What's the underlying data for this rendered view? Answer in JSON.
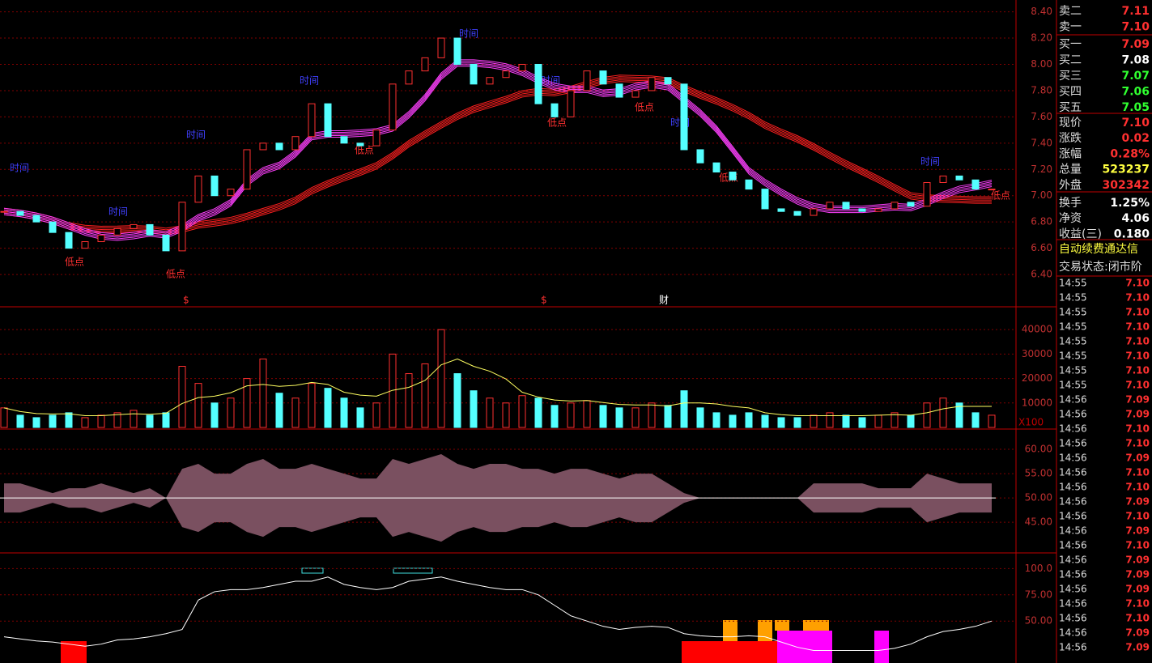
{
  "chart": {
    "type": "candlestick",
    "closes": [
      6.88,
      6.85,
      6.8,
      6.72,
      6.6,
      6.65,
      6.7,
      6.75,
      6.78,
      6.7,
      6.58,
      6.95,
      7.15,
      7.0,
      7.05,
      7.35,
      7.4,
      7.35,
      7.45,
      7.7,
      7.45,
      7.4,
      7.38,
      7.5,
      7.85,
      7.95,
      8.05,
      8.2,
      8.0,
      7.85,
      7.9,
      7.95,
      8.0,
      7.7,
      7.6,
      7.8,
      7.95,
      7.85,
      7.75,
      7.8,
      7.9,
      7.85,
      7.35,
      7.25,
      7.18,
      7.12,
      7.05,
      6.9,
      6.88,
      6.85,
      6.9,
      6.95,
      6.9,
      6.88,
      6.9,
      6.95,
      6.92,
      7.1,
      7.15,
      7.12,
      7.05,
      7.05
    ],
    "ylim": [
      6.16,
      8.49
    ],
    "yticks": [
      {
        "value": 8.4,
        "label": "8.40"
      },
      {
        "value": 8.2,
        "label": "8.20"
      },
      {
        "value": 8.0,
        "label": "8.00"
      },
      {
        "value": 7.8,
        "label": "7.80"
      },
      {
        "value": 7.6,
        "label": "7.60"
      },
      {
        "value": 7.4,
        "label": "7.40"
      },
      {
        "value": 7.2,
        "label": "7.20"
      },
      {
        "value": 7.0,
        "label": "7.00"
      },
      {
        "value": 6.8,
        "label": "6.80"
      },
      {
        "value": 6.6,
        "label": "6.60"
      },
      {
        "value": 6.4,
        "label": "6.40"
      }
    ],
    "annotations": [
      "时间",
      "时间",
      "时间",
      "时间",
      "时间",
      "时间",
      "时间",
      "时间",
      "低点",
      "低点",
      "低点",
      "低点",
      "低点",
      "低点",
      "低点"
    ],
    "markers": [
      "$",
      "$",
      "财"
    ]
  },
  "volume": {
    "type": "bar",
    "values": [
      8000,
      5000,
      4000,
      5000,
      6000,
      4000,
      5000,
      6000,
      7000,
      5000,
      6000,
      25000,
      18000,
      10000,
      12000,
      20000,
      28000,
      14000,
      12000,
      18000,
      16000,
      12000,
      8000,
      10000,
      30000,
      22000,
      26000,
      40000,
      22000,
      15000,
      12000,
      10000,
      13000,
      12000,
      9000,
      10000,
      11000,
      9000,
      8000,
      8000,
      10000,
      9000,
      15000,
      8000,
      6000,
      5000,
      6000,
      5000,
      4000,
      4000,
      5000,
      6000,
      5000,
      4000,
      5000,
      6000,
      5000,
      10000,
      12000,
      10000,
      6000,
      5000
    ],
    "ylim": [
      0,
      49000
    ],
    "yticks": [
      40000,
      30000,
      20000,
      10000
    ],
    "unit": "X100"
  },
  "oscillator": {
    "type": "area",
    "values": [
      53,
      53,
      52,
      51,
      52,
      52,
      53,
      52,
      51,
      52,
      50,
      56,
      57,
      55,
      55,
      57,
      58,
      56,
      56,
      57,
      56,
      55,
      54,
      54,
      58,
      57,
      58,
      59,
      57,
      56,
      57,
      57,
      56,
      56,
      55,
      56,
      56,
      55,
      54,
      55,
      55,
      53,
      51,
      50,
      50,
      50,
      50,
      50,
      50,
      50,
      53,
      53,
      53,
      53,
      52,
      52,
      52,
      55,
      54,
      53,
      53,
      53
    ],
    "ylim": [
      38.7,
      64
    ],
    "yticks": [
      {
        "value": 60,
        "label": "60.00"
      },
      {
        "value": 55,
        "label": "55.00"
      },
      {
        "value": 50,
        "label": "50.00"
      },
      {
        "value": 45,
        "label": "45.00"
      }
    ]
  },
  "indicator": {
    "type": "line",
    "values": [
      35,
      33,
      31,
      30,
      28,
      26,
      28,
      32,
      33,
      35,
      38,
      42,
      70,
      78,
      80,
      80,
      82,
      85,
      88,
      88,
      92,
      85,
      82,
      80,
      82,
      88,
      90,
      92,
      88,
      85,
      82,
      80,
      80,
      75,
      65,
      55,
      50,
      45,
      42,
      44,
      45,
      44,
      38,
      36,
      35,
      35,
      36,
      35,
      30,
      25,
      22,
      22,
      22,
      22,
      22,
      24,
      28,
      35,
      40,
      42,
      45,
      50
    ],
    "ylim": [
      10,
      115
    ],
    "yticks": [
      {
        "value": 100,
        "label": "100.0"
      },
      {
        "value": 75,
        "label": "75.00"
      },
      {
        "value": 50,
        "label": "50.00"
      }
    ]
  },
  "quote": {
    "book": [
      {
        "label": "卖二",
        "price": "7.11",
        "color": "#ff3030"
      },
      {
        "label": "卖一",
        "price": "7.10",
        "color": "#ff3030"
      },
      {
        "label": "买一",
        "price": "7.09",
        "color": "#ff3030"
      },
      {
        "label": "买二",
        "price": "7.08",
        "color": "#ffffff"
      },
      {
        "label": "买三",
        "price": "7.07",
        "color": "#30ff30"
      },
      {
        "label": "买四",
        "price": "7.06",
        "color": "#30ff30"
      },
      {
        "label": "买五",
        "price": "7.05",
        "color": "#30ff30"
      }
    ],
    "stats": [
      {
        "label": "现价",
        "value": "7.10",
        "color": "#ff3030"
      },
      {
        "label": "涨跌",
        "value": "0.02",
        "color": "#ff3030"
      },
      {
        "label": "涨幅",
        "value": "0.28%",
        "color": "#ff3030"
      },
      {
        "label": "总量",
        "value": "523237",
        "color": "#ffff40"
      },
      {
        "label": "外盘",
        "value": "302342",
        "color": "#ff3030"
      },
      {
        "label": "换手",
        "value": "1.25%",
        "color": "#ffffff"
      },
      {
        "label": "净资",
        "value": "4.06",
        "color": "#ffffff"
      },
      {
        "label": "收益(三)",
        "value": "0.180",
        "color": "#ffffff"
      }
    ],
    "notices": [
      "自动续费通达信",
      "交易状态:闭市阶"
    ],
    "ticks": [
      [
        "14:55",
        "7.10"
      ],
      [
        "14:55",
        "7.10"
      ],
      [
        "14:55",
        "7.10"
      ],
      [
        "14:55",
        "7.10"
      ],
      [
        "14:55",
        "7.10"
      ],
      [
        "14:55",
        "7.10"
      ],
      [
        "14:55",
        "7.10"
      ],
      [
        "14:55",
        "7.10"
      ],
      [
        "14:56",
        "7.09"
      ],
      [
        "14:56",
        "7.09"
      ],
      [
        "14:56",
        "7.10"
      ],
      [
        "14:56",
        "7.10"
      ],
      [
        "14:56",
        "7.09"
      ],
      [
        "14:56",
        "7.10"
      ],
      [
        "14:56",
        "7.10"
      ],
      [
        "14:56",
        "7.09"
      ],
      [
        "14:56",
        "7.10"
      ],
      [
        "14:56",
        "7.09"
      ],
      [
        "14:56",
        "7.10"
      ],
      [
        "14:56",
        "7.09"
      ],
      [
        "14:56",
        "7.09"
      ],
      [
        "14:56",
        "7.09"
      ],
      [
        "14:56",
        "7.10"
      ],
      [
        "14:56",
        "7.10"
      ],
      [
        "14:56",
        "7.09"
      ],
      [
        "14:56",
        "7.09"
      ]
    ]
  }
}
